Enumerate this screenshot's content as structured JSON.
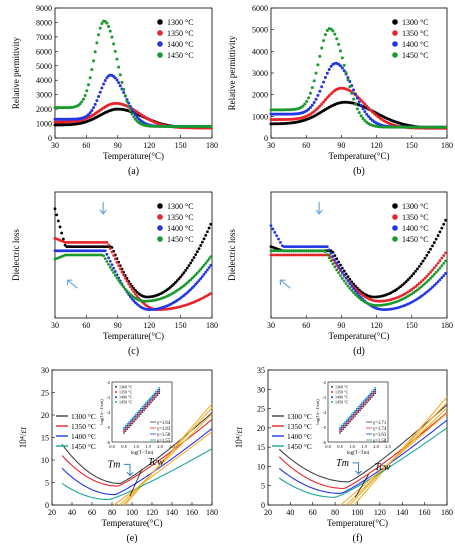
{
  "chart_data": [
    {
      "panel": "(a)",
      "type": "scatter",
      "xlabel": "Temperature(°C)",
      "ylabel": "Relative permitivity",
      "xlim": [
        30,
        180
      ],
      "ylim": [
        0,
        9000
      ],
      "xticks": [
        "30",
        "60",
        "90",
        "120",
        "150",
        "180"
      ],
      "yticks": [
        "0",
        "1000",
        "2000",
        "3000",
        "4000",
        "5000",
        "6000",
        "7000",
        "8000",
        "9000"
      ],
      "legend_position": "top-right",
      "series": [
        {
          "name": "1300 °C",
          "color": "#000000",
          "peak_x": 90,
          "base": 900,
          "peak": 2000,
          "w": 24,
          "tail": 700
        },
        {
          "name": "1350 °C",
          "color": "#e8252a",
          "peak_x": 88,
          "base": 1100,
          "peak": 2400,
          "w": 22,
          "tail": 700
        },
        {
          "name": "1400 °C",
          "color": "#2236e6",
          "peak_x": 83,
          "base": 1300,
          "peak": 4350,
          "w": 14,
          "tail": 800
        },
        {
          "name": "1450 °C",
          "color": "#1a9a2c",
          "peak_x": 77,
          "base": 2100,
          "peak": 8100,
          "w": 13,
          "tail": 800
        }
      ]
    },
    {
      "panel": "(b)",
      "type": "scatter",
      "xlabel": "Temperature(°C)",
      "ylabel": "Relative permittivity",
      "xlim": [
        30,
        180
      ],
      "ylim": [
        0,
        6000
      ],
      "xticks": [
        "30",
        "60",
        "90",
        "120",
        "150",
        "180"
      ],
      "yticks": [
        "0",
        "1000",
        "2000",
        "3000",
        "4000",
        "5000",
        "6000"
      ],
      "legend_position": "top-right",
      "series": [
        {
          "name": "1300 °C",
          "color": "#000000",
          "peak_x": 93,
          "base": 650,
          "peak": 1650,
          "w": 26,
          "tail": 450
        },
        {
          "name": "1350 °C",
          "color": "#e8252a",
          "peak_x": 90,
          "base": 850,
          "peak": 2300,
          "w": 20,
          "tail": 450
        },
        {
          "name": "1400 °C",
          "color": "#2236e6",
          "peak_x": 85,
          "base": 1100,
          "peak": 3450,
          "w": 15,
          "tail": 500
        },
        {
          "name": "1450 °C",
          "color": "#1a9a2c",
          "peak_x": 80,
          "base": 1300,
          "peak": 5050,
          "w": 13,
          "tail": 500
        }
      ]
    },
    {
      "panel": "(c)",
      "type": "scatter",
      "xlabel": "Temperature(°C)",
      "ylabel": "Dielectric loss",
      "xlim": [
        30,
        180
      ],
      "ylim": [
        0,
        0.03
      ],
      "xticks": [
        "30",
        "60",
        "90",
        "120",
        "150",
        "180"
      ],
      "legend_position": "top-right",
      "series": [
        {
          "name": "1300 °C",
          "color": "#000000",
          "start": 0.026,
          "plateau": 0.017,
          "dropx": 84,
          "min": 0.005,
          "minx": 118,
          "end": 0.023
        },
        {
          "name": "1350 °C",
          "color": "#e8252a",
          "start": 0.019,
          "plateau": 0.018,
          "dropx": 80,
          "min": 0.002,
          "minx": 128,
          "end": 0.006
        },
        {
          "name": "1400 °C",
          "color": "#2236e6",
          "start": 0.016,
          "plateau": 0.016,
          "dropx": 78,
          "min": 0.002,
          "minx": 120,
          "end": 0.013
        },
        {
          "name": "1450 °C",
          "color": "#1a9a2c",
          "start": 0.014,
          "plateau": 0.015,
          "dropx": 76,
          "min": 0.004,
          "minx": 116,
          "end": 0.015
        }
      ]
    },
    {
      "panel": "(d)",
      "type": "scatter",
      "xlabel": "Temperature(°C)",
      "ylabel": "Dielectric loss",
      "xlim": [
        30,
        180
      ],
      "ylim": [
        0,
        0.03
      ],
      "xticks": [
        "30",
        "60",
        "90",
        "120",
        "150",
        "180"
      ],
      "legend_position": "top-right",
      "series": [
        {
          "name": "1300 °C",
          "color": "#000000",
          "start": 0.017,
          "plateau": 0.016,
          "dropx": 82,
          "min": 0.005,
          "minx": 118,
          "end": 0.024
        },
        {
          "name": "1350 °C",
          "color": "#e8252a",
          "start": 0.015,
          "plateau": 0.015,
          "dropx": 80,
          "min": 0.004,
          "minx": 122,
          "end": 0.016
        },
        {
          "name": "1400 °C",
          "color": "#2236e6",
          "start": 0.022,
          "plateau": 0.017,
          "dropx": 78,
          "min": 0.002,
          "minx": 126,
          "end": 0.011
        },
        {
          "name": "1450 °C",
          "color": "#1a9a2c",
          "start": 0.016,
          "plateau": 0.016,
          "dropx": 76,
          "min": 0.003,
          "minx": 120,
          "end": 0.014
        }
      ]
    },
    {
      "panel": "(e)",
      "type": "line",
      "xlabel": "Temperature(°C)",
      "ylabel": "10⁴/εr",
      "xlim": [
        20,
        180
      ],
      "ylim": [
        0,
        30
      ],
      "xticks": [
        "20",
        "40",
        "60",
        "80",
        "100",
        "120",
        "140",
        "160",
        "180"
      ],
      "yticks": [
        "0",
        "5",
        "10",
        "15",
        "20",
        "25",
        "30"
      ],
      "annotations": [
        "Tm",
        "Tcw"
      ],
      "legend_position": "upper-left",
      "series": [
        {
          "name": "1300 °C",
          "color": "#444444",
          "start": 13.5,
          "min": 4.8,
          "minx": 88,
          "end": 20.5
        },
        {
          "name": "1350 °C",
          "color": "#e8252a",
          "start": 11.0,
          "min": 4.2,
          "minx": 86,
          "end": 19.0
        },
        {
          "name": "1400 °C",
          "color": "#2236e6",
          "start": 8.2,
          "min": 2.3,
          "minx": 83,
          "end": 17.0
        },
        {
          "name": "1450 °C",
          "color": "#1aa89a",
          "start": 4.8,
          "min": 1.2,
          "minx": 77,
          "end": 12.5
        }
      ],
      "inset": {
        "xlabel": "log(T−Tm)",
        "ylabel": "log(1/ε−1/εm)",
        "xlim": [
          0,
          2.5
        ],
        "ylim": [
          -6,
          -2
        ],
        "xticks": [
          "0.0",
          "0.5",
          "1.0",
          "1.5",
          "2.0",
          "2.5"
        ],
        "yticks": [
          "-6",
          "-5",
          "-4",
          "-3",
          "-2"
        ],
        "legend": [
          "1300 °C",
          "1350 °C",
          "1400 °C",
          "1450 °C"
        ],
        "gammas": [
          "γ=1.64",
          "γ=1.83",
          "γ=1.58",
          "γ=1.55"
        ]
      }
    },
    {
      "panel": "(f)",
      "type": "line",
      "xlabel": "Temperature(°C)",
      "ylabel": "10⁴/εr",
      "xlim": [
        20,
        180
      ],
      "ylim": [
        0,
        35
      ],
      "xticks": [
        "20",
        "40",
        "60",
        "80",
        "100",
        "120",
        "140",
        "160",
        "180"
      ],
      "yticks": [
        "0",
        "5",
        "10",
        "15",
        "20",
        "25",
        "30",
        "35"
      ],
      "annotations": [
        "Tm",
        "Tcw"
      ],
      "legend_position": "upper-left",
      "series": [
        {
          "name": "1300 °C",
          "color": "#444444",
          "start": 14.5,
          "min": 6.0,
          "minx": 92,
          "end": 26.0
        },
        {
          "name": "1350 °C",
          "color": "#e8252a",
          "start": 12.5,
          "min": 4.3,
          "minx": 88,
          "end": 24.0
        },
        {
          "name": "1400 °C",
          "color": "#2236e6",
          "start": 9.5,
          "min": 3.0,
          "minx": 85,
          "end": 22.0
        },
        {
          "name": "1450 °C",
          "color": "#1aa89a",
          "start": 7.0,
          "min": 2.0,
          "minx": 80,
          "end": 20.0
        }
      ],
      "inset": {
        "xlabel": "log(T−Tm)",
        "ylabel": "log(1/ε−1/εm)",
        "xlim": [
          0,
          2.5
        ],
        "ylim": [
          -6,
          -2
        ],
        "xticks": [
          "0.0",
          "0.5",
          "1.0",
          "1.5",
          "2.0",
          "2.5"
        ],
        "yticks": [
          "-6",
          "-5",
          "-4",
          "-3",
          "-2"
        ],
        "legend": [
          "1300 °C",
          "1350 °C",
          "1400 °C",
          "1450 °C"
        ],
        "gammas": [
          "γ=1.71",
          "γ=1.74",
          "γ=1.63",
          "γ=1.58"
        ]
      }
    }
  ]
}
